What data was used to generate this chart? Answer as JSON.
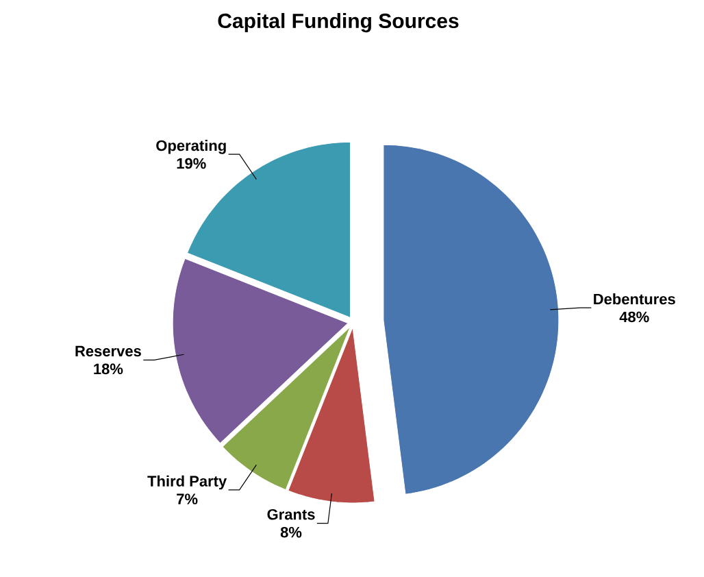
{
  "chart_data": {
    "type": "pie",
    "title": "Capital Funding Sources",
    "categories": [
      "Debentures",
      "Grants",
      "Third Party",
      "Reserves",
      "Operating"
    ],
    "values": [
      48,
      8,
      7,
      18,
      19
    ],
    "value_labels": [
      "48%",
      "8%",
      "7%",
      "18%",
      "19%"
    ],
    "colors": [
      "#4a76b0",
      "#b84a48",
      "#88a84a",
      "#7a5b9a",
      "#3b9bb0"
    ]
  }
}
